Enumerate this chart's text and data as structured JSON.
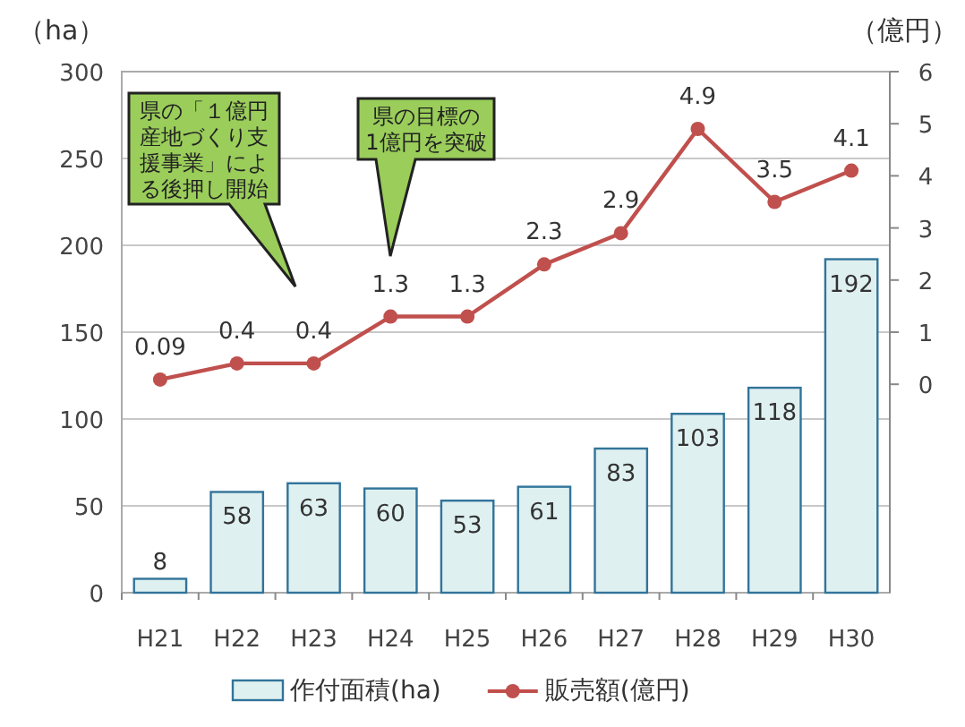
{
  "chart_data": {
    "type": "bar",
    "ylabel": "（ha）",
    "y2label": "（億円）",
    "categories": [
      "H21",
      "H22",
      "H23",
      "H24",
      "H25",
      "H26",
      "H27",
      "H28",
      "H29",
      "H30"
    ],
    "series": [
      {
        "name": "作付面積(ha)",
        "color": "#dff0f0",
        "values": [
          8,
          58,
          63,
          60,
          53,
          61,
          83,
          103,
          118,
          192
        ]
      },
      {
        "name": "販売額(億円)",
        "type": "line",
        "axis": "y2",
        "color": "#c0504d",
        "marker": "circle",
        "values": [
          0.09,
          0.4,
          0.4,
          1.3,
          1.3,
          2.3,
          2.9,
          4.9,
          3.5,
          4.1
        ]
      }
    ],
    "ylim": [
      0,
      300
    ],
    "yticks": [
      0,
      50,
      100,
      150,
      200,
      250,
      300
    ],
    "y2lim": [
      -4,
      6
    ],
    "y2ticks": [
      0,
      1,
      2,
      3,
      4,
      5,
      6
    ],
    "grid": "y",
    "legend": "bottom",
    "data_labels": true,
    "annotations": [
      "県の「１億円産地づくり支援事業」による後押し開始",
      "県の目標の1億円を突破"
    ]
  }
}
